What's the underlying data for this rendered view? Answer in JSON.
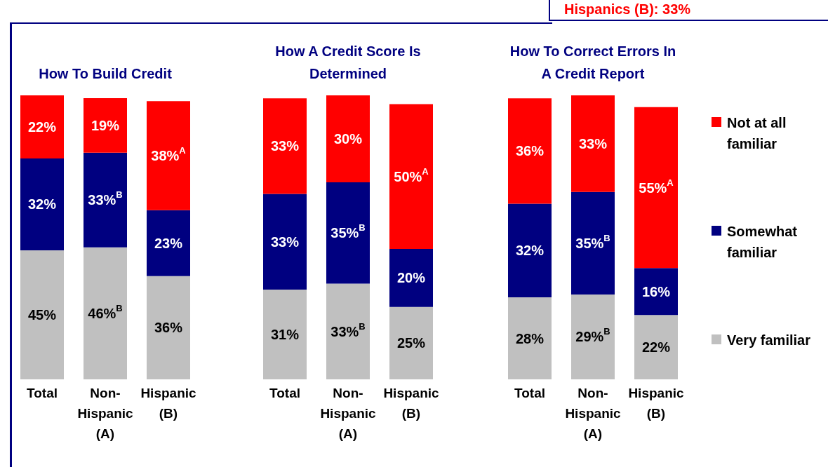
{
  "chart_data": [
    {
      "type": "bar",
      "title": "How To Build Credit",
      "stacked": true,
      "tick_labels": "x",
      "grid": false,
      "legend": false,
      "annotations": [
        "Hispanics (B): 33%"
      ],
      "categories": [
        "Total",
        "Non-\nHispanic\n(A)",
        "Hispanic\n(B)"
      ],
      "series": [
        {
          "color": "#c0c0c0",
          "values": [
            45,
            46,
            36
          ],
          "value_labels": [
            "45%",
            "46%$^{B}$",
            "36%"
          ]
        },
        {
          "color": "#000080",
          "values": [
            32,
            33,
            23
          ],
          "value_labels": [
            "32%",
            "33%$^{B}$",
            "23%"
          ]
        },
        {
          "color": "#ff0000",
          "values": [
            22,
            19,
            38
          ],
          "value_labels": [
            "22%",
            "19%",
            "38%$^{A}$"
          ]
        }
      ]
    },
    {
      "type": "bar",
      "title": "How A Credit Score Is Determined",
      "stacked": true,
      "tick_labels": "x",
      "grid": false,
      "legend": false,
      "categories": [
        "Total",
        "Non-\nHispanic\n(A)",
        "Hispanic\n(B)"
      ],
      "series": [
        {
          "color": "#c0c0c0",
          "values": [
            31,
            33,
            25
          ],
          "value_labels": [
            "31%",
            "33%$^{B}$",
            "25%"
          ]
        },
        {
          "color": "#000080",
          "values": [
            33,
            35,
            20
          ],
          "value_labels": [
            "33%",
            "35%$^{B}$",
            "20%"
          ]
        },
        {
          "color": "#ff0000",
          "values": [
            33,
            30,
            50
          ],
          "value_labels": [
            "33%",
            "30%",
            "50%$^{A}$"
          ]
        }
      ]
    },
    {
      "type": "bar",
      "title": "How To Correct Errors In A Credit Report",
      "stacked": true,
      "tick_labels": "x",
      "grid": false,
      "legend": "right",
      "categories": [
        "Total",
        "Non-\nHispanic\n(A)",
        "Hispanic\n(B)"
      ],
      "series": [
        {
          "name": "Very familiar",
          "color": "#c0c0c0",
          "values": [
            28,
            29,
            22
          ],
          "value_labels": [
            "28%",
            "29%$^{B}$",
            "22%"
          ]
        },
        {
          "name": "Somewhat familiar",
          "color": "#000080",
          "values": [
            32,
            35,
            16
          ],
          "value_labels": [
            "32%",
            "35%$^{B}$",
            "16%"
          ]
        },
        {
          "name": "Not at all familiar",
          "color": "#ff0000",
          "values": [
            36,
            33,
            55
          ],
          "value_labels": [
            "36%",
            "33%",
            "55%$^{A}$"
          ]
        }
      ]
    }
  ]
}
